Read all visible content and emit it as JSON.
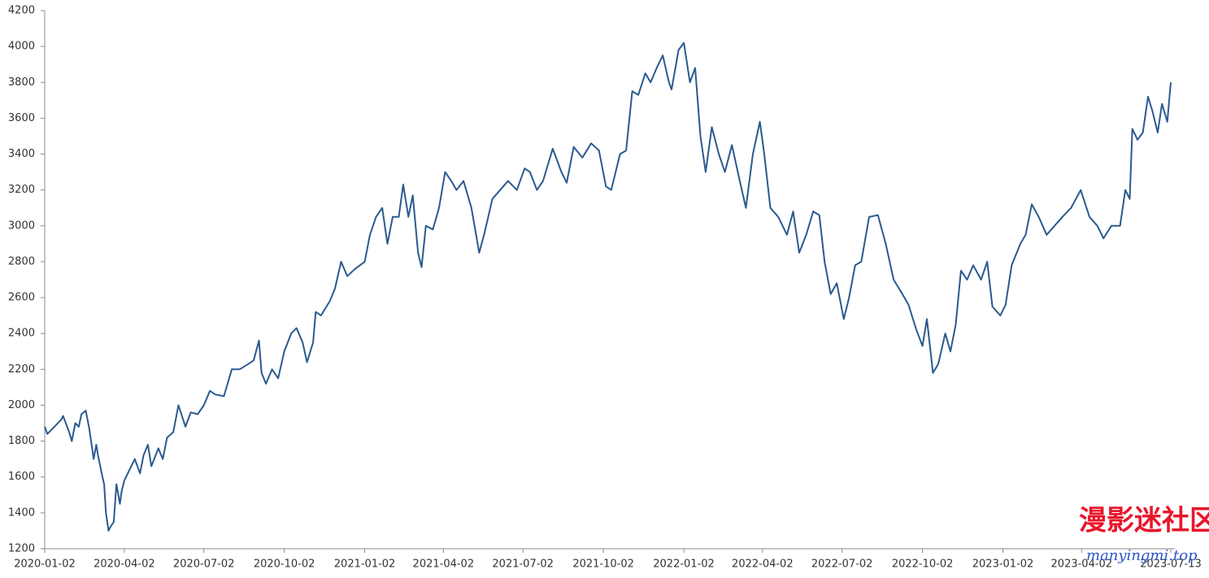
{
  "chart_data": {
    "type": "line",
    "color": "#2b5a8e",
    "xlim": [
      "2020-01-02",
      "2023-07-13"
    ],
    "xticks": [
      "2020-01-02",
      "2020-04-02",
      "2020-07-02",
      "2020-10-02",
      "2021-01-02",
      "2021-04-02",
      "2021-07-02",
      "2021-10-02",
      "2022-01-02",
      "2022-04-02",
      "2022-07-02",
      "2022-10-02",
      "2023-01-02",
      "2023-04-02",
      "2023-07-13"
    ],
    "ylim": [
      1200,
      4200
    ],
    "yticks": [
      1200,
      1400,
      1600,
      1800,
      2000,
      2200,
      2400,
      2600,
      2800,
      3000,
      3200,
      3400,
      3600,
      3800,
      4000,
      4200
    ],
    "x": [
      "2020-01-02",
      "2020-01-05",
      "2020-01-11",
      "2020-01-21",
      "2020-01-23",
      "2020-01-30",
      "2020-02-02",
      "2020-02-06",
      "2020-02-10",
      "2020-02-13",
      "2020-02-18",
      "2020-02-22",
      "2020-02-27",
      "2020-03-01",
      "2020-03-03",
      "2020-03-08",
      "2020-03-10",
      "2020-03-12",
      "2020-03-15",
      "2020-03-17",
      "2020-03-21",
      "2020-03-24",
      "2020-03-28",
      "2020-03-30",
      "2020-04-02",
      "2020-04-09",
      "2020-04-14",
      "2020-04-20",
      "2020-04-24",
      "2020-04-29",
      "2020-05-03",
      "2020-05-11",
      "2020-05-16",
      "2020-05-21",
      "2020-05-28",
      "2020-06-03",
      "2020-06-11",
      "2020-06-17",
      "2020-06-25",
      "2020-07-02",
      "2020-07-09",
      "2020-07-15",
      "2020-07-25",
      "2020-08-03",
      "2020-08-12",
      "2020-08-22",
      "2020-08-28",
      "2020-09-03",
      "2020-09-06",
      "2020-09-11",
      "2020-09-18",
      "2020-09-25",
      "2020-10-02",
      "2020-10-10",
      "2020-10-16",
      "2020-10-23",
      "2020-10-28",
      "2020-11-04",
      "2020-11-07",
      "2020-11-13",
      "2020-11-23",
      "2020-11-29",
      "2020-12-06",
      "2020-12-13",
      "2020-12-22",
      "2021-01-02",
      "2021-01-08",
      "2021-01-15",
      "2021-01-22",
      "2021-01-28",
      "2021-02-03",
      "2021-02-10",
      "2021-02-15",
      "2021-02-21",
      "2021-02-26",
      "2021-03-04",
      "2021-03-08",
      "2021-03-13",
      "2021-03-21",
      "2021-03-28",
      "2021-04-04",
      "2021-04-11",
      "2021-04-17",
      "2021-04-25",
      "2021-05-04",
      "2021-05-13",
      "2021-05-19",
      "2021-05-28",
      "2021-06-06",
      "2021-06-15",
      "2021-06-25",
      "2021-07-04",
      "2021-07-10",
      "2021-07-18",
      "2021-07-25",
      "2021-08-05",
      "2021-08-15",
      "2021-08-21",
      "2021-08-29",
      "2021-09-08",
      "2021-09-18",
      "2021-09-27",
      "2021-10-05",
      "2021-10-11",
      "2021-10-21",
      "2021-10-28",
      "2021-11-04",
      "2021-11-11",
      "2021-11-19",
      "2021-11-25",
      "2021-12-02",
      "2021-12-09",
      "2021-12-16",
      "2021-12-19",
      "2021-12-27",
      "2022-01-02",
      "2022-01-09",
      "2022-01-15",
      "2022-01-21",
      "2022-01-27",
      "2022-02-03",
      "2022-02-11",
      "2022-02-18",
      "2022-02-26",
      "2022-03-07",
      "2022-03-14",
      "2022-03-22",
      "2022-03-30",
      "2022-04-04",
      "2022-04-11",
      "2022-04-20",
      "2022-04-30",
      "2022-05-07",
      "2022-05-14",
      "2022-05-22",
      "2022-05-30",
      "2022-06-06",
      "2022-06-12",
      "2022-06-19",
      "2022-06-26",
      "2022-07-04",
      "2022-07-10",
      "2022-07-17",
      "2022-07-24",
      "2022-08-02",
      "2022-08-12",
      "2022-08-21",
      "2022-08-30",
      "2022-09-09",
      "2022-09-16",
      "2022-09-25",
      "2022-10-02",
      "2022-10-07",
      "2022-10-14",
      "2022-10-20",
      "2022-10-28",
      "2022-11-03",
      "2022-11-09",
      "2022-11-15",
      "2022-11-22",
      "2022-11-29",
      "2022-12-08",
      "2022-12-15",
      "2022-12-21",
      "2022-12-30",
      "2023-01-05",
      "2023-01-12",
      "2023-01-22",
      "2023-01-28",
      "2023-02-04",
      "2023-02-12",
      "2023-02-21",
      "2023-03-02",
      "2023-03-11",
      "2023-03-21",
      "2023-04-01",
      "2023-04-11",
      "2023-04-20",
      "2023-04-27",
      "2023-05-06",
      "2023-05-16",
      "2023-05-22",
      "2023-05-27",
      "2023-05-30",
      "2023-06-05",
      "2023-06-11",
      "2023-06-17",
      "2023-06-22",
      "2023-06-28",
      "2023-07-03",
      "2023-07-09",
      "2023-07-13"
    ],
    "values": [
      1880,
      1840,
      1870,
      1920,
      1940,
      1850,
      1800,
      1900,
      1880,
      1950,
      1970,
      1870,
      1700,
      1780,
      1720,
      1600,
      1560,
      1400,
      1300,
      1320,
      1350,
      1560,
      1450,
      1520,
      1580,
      1650,
      1700,
      1620,
      1720,
      1780,
      1660,
      1760,
      1700,
      1820,
      1850,
      2000,
      1880,
      1960,
      1950,
      2000,
      2080,
      2060,
      2050,
      2200,
      2200,
      2230,
      2250,
      2360,
      2180,
      2120,
      2200,
      2150,
      2300,
      2400,
      2430,
      2350,
      2240,
      2350,
      2520,
      2500,
      2580,
      2650,
      2800,
      2720,
      2760,
      2800,
      2950,
      3050,
      3100,
      2900,
      3050,
      3050,
      3230,
      3050,
      3170,
      2850,
      2770,
      3000,
      2980,
      3100,
      3300,
      3250,
      3200,
      3250,
      3100,
      2850,
      2960,
      3150,
      3200,
      3250,
      3200,
      3320,
      3300,
      3200,
      3250,
      3430,
      3300,
      3240,
      3440,
      3380,
      3460,
      3420,
      3220,
      3200,
      3400,
      3420,
      3750,
      3730,
      3850,
      3800,
      3880,
      3950,
      3800,
      3760,
      3980,
      4020,
      3800,
      3880,
      3500,
      3300,
      3550,
      3400,
      3300,
      3450,
      3250,
      3100,
      3400,
      3580,
      3400,
      3100,
      3050,
      2950,
      3080,
      2850,
      2950,
      3080,
      3060,
      2800,
      2620,
      2680,
      2480,
      2600,
      2780,
      2800,
      3050,
      3060,
      2900,
      2700,
      2620,
      2560,
      2420,
      2330,
      2480,
      2180,
      2230,
      2400,
      2300,
      2450,
      2750,
      2700,
      2780,
      2700,
      2800,
      2550,
      2500,
      2560,
      2780,
      2900,
      2950,
      3120,
      3050,
      2950,
      3000,
      3050,
      3100,
      3200,
      3050,
      3000,
      2930,
      3000,
      3000,
      3200,
      3150,
      3540,
      3480,
      3520,
      3720,
      3640,
      3520,
      3680,
      3580,
      3800
    ]
  },
  "watermark": {
    "title": "漫影迷社区",
    "url": "manyingmi.top"
  }
}
